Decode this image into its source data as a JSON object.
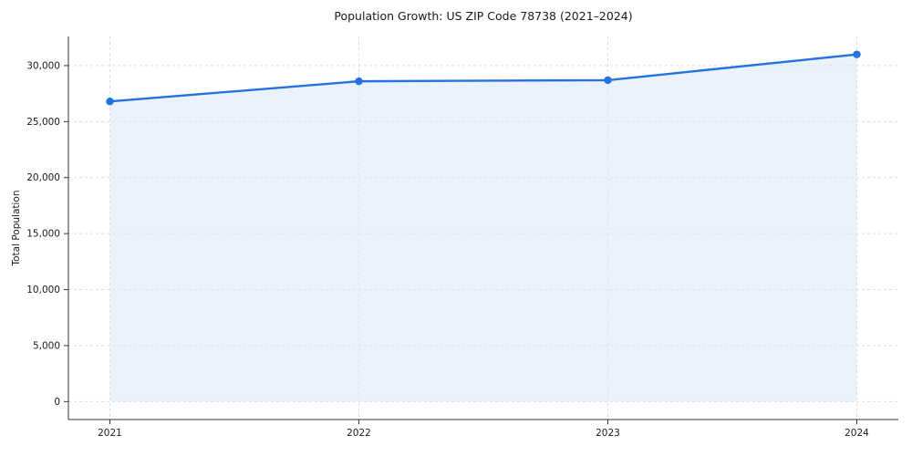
{
  "chart_data": {
    "type": "line",
    "title": "Population Growth: US ZIP Code 78738 (2021–2024)",
    "xlabel": "",
    "ylabel": "Total Population",
    "x": [
      2021,
      2022,
      2023,
      2024
    ],
    "xtick_labels": [
      "2021",
      "2022",
      "2023",
      "2024"
    ],
    "series": [
      {
        "name": "Total Population",
        "values": [
          26800,
          28600,
          28700,
          31000
        ]
      }
    ],
    "ylim": [
      -1600,
      32600
    ],
    "yticks": [
      0,
      5000,
      10000,
      15000,
      20000,
      25000,
      30000
    ],
    "ytick_labels": [
      "0",
      "5,000",
      "10,000",
      "15,000",
      "20,000",
      "25,000",
      "30,000"
    ],
    "grid": true,
    "grid_style": "dashed",
    "legend": "none",
    "line_color": "#2272e2",
    "marker": "circle",
    "fill_color": "#d9e8fa",
    "fill_opacity": 0.55,
    "fill_to": 0
  }
}
